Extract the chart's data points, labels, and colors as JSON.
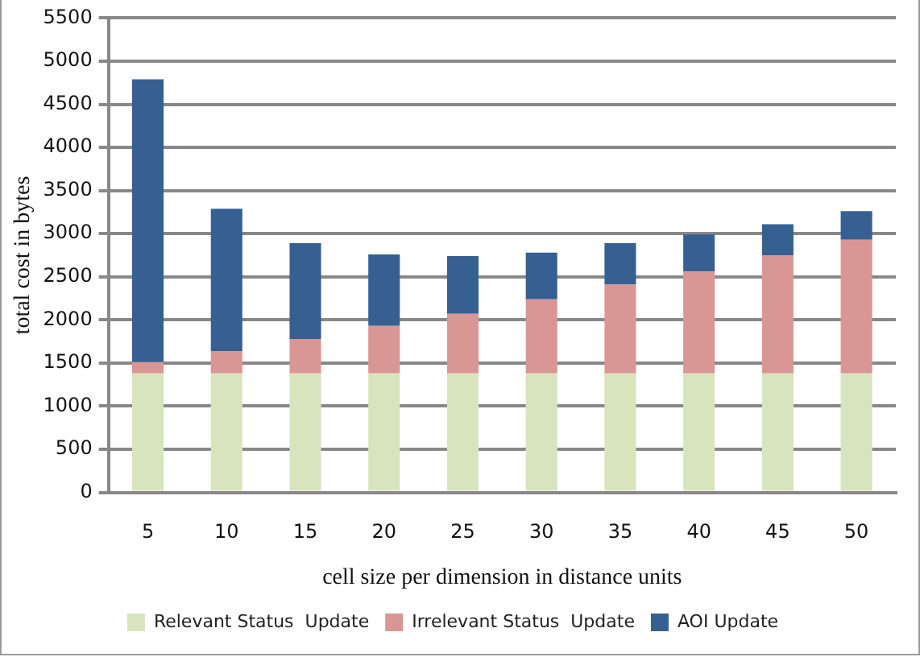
{
  "chart_data": {
    "type": "bar",
    "stacked": true,
    "xlabel": "cell size per dimension in distance units",
    "ylabel": "total cost in bytes",
    "categories": [
      "5",
      "10",
      "15",
      "20",
      "25",
      "30",
      "35",
      "40",
      "45",
      "50"
    ],
    "series": [
      {
        "name": "Relevant Status  Update",
        "color": "#d7e4bd",
        "values": [
          1380,
          1380,
          1380,
          1380,
          1380,
          1380,
          1380,
          1380,
          1380,
          1380
        ]
      },
      {
        "name": "Irrelevant Status  Update",
        "color": "#d99694",
        "values": [
          130,
          260,
          400,
          550,
          690,
          860,
          1030,
          1180,
          1370,
          1550
        ]
      },
      {
        "name": "AOI Update",
        "color": "#376092",
        "values": [
          3280,
          1650,
          1110,
          830,
          670,
          540,
          480,
          430,
          360,
          330
        ]
      }
    ],
    "ylim": [
      0,
      5500
    ],
    "yticks": [
      0,
      500,
      1000,
      1500,
      2000,
      2500,
      3000,
      3500,
      4000,
      4500,
      5000,
      5500
    ],
    "grid": "y",
    "legend": "bottom"
  }
}
